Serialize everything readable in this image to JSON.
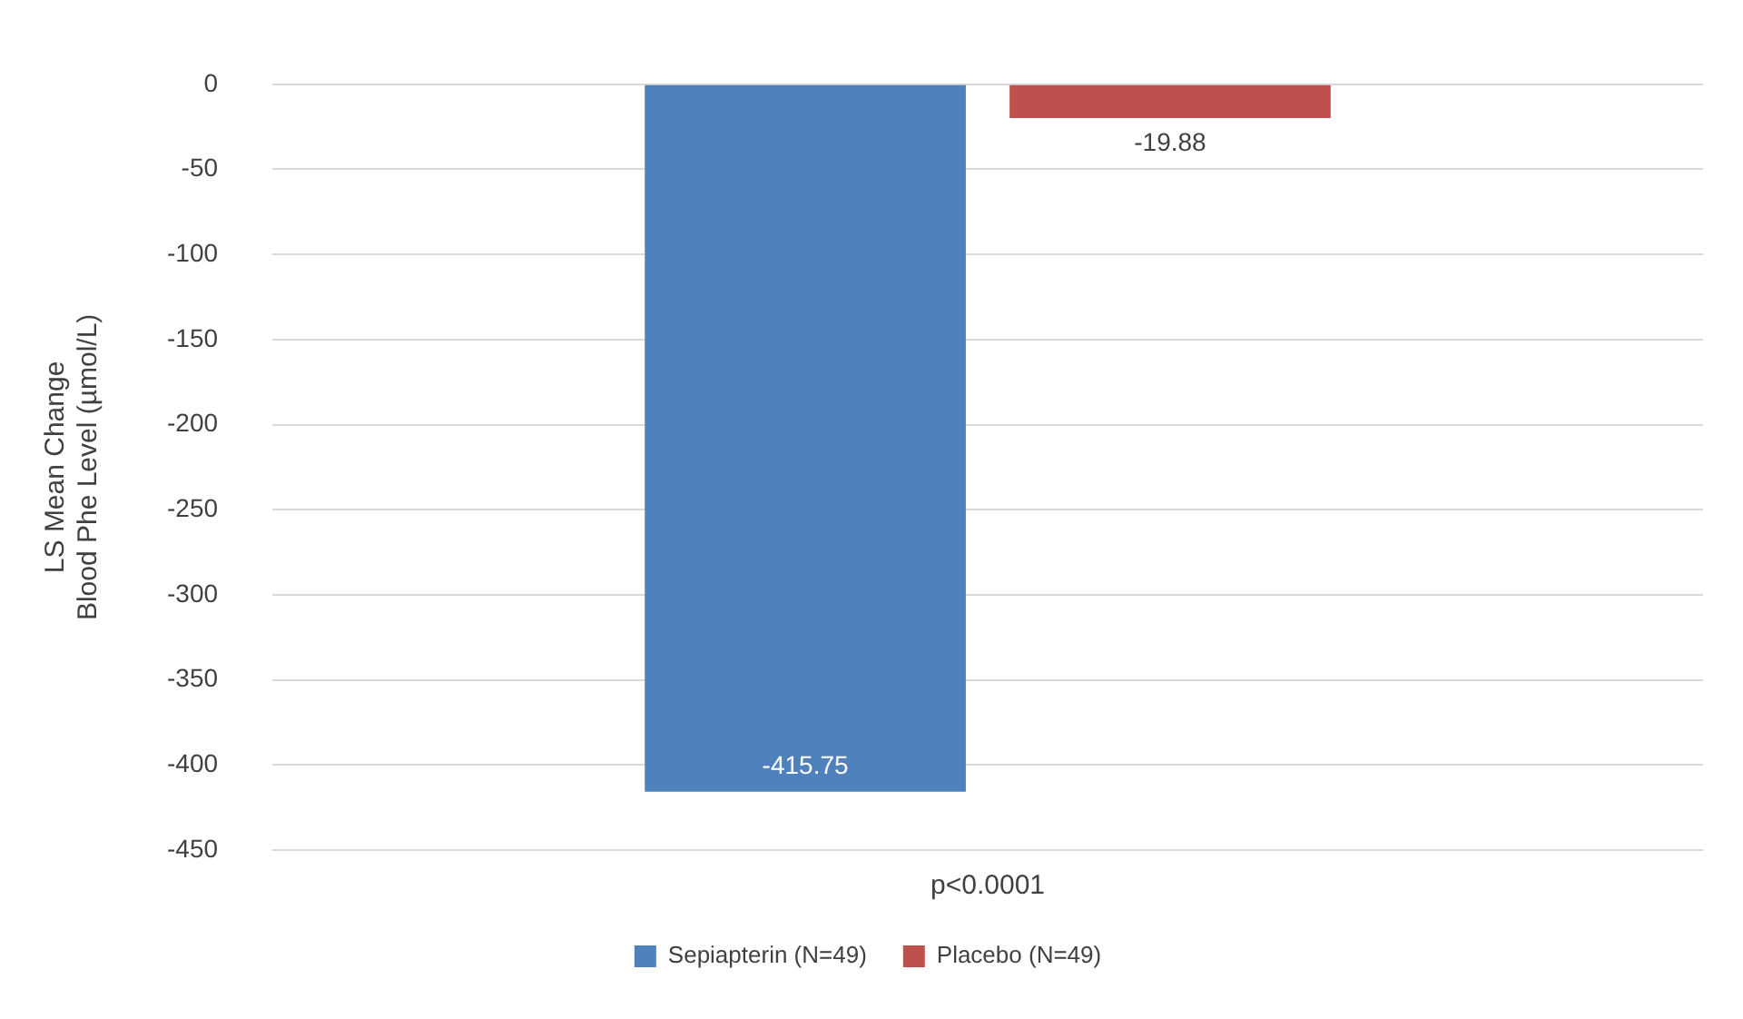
{
  "chart_data": {
    "type": "bar",
    "ylabel": "LS Mean Change\nBlood Phe Level (µmol/L)",
    "categories": [
      "p<0.0001"
    ],
    "series": [
      {
        "name": "Sepiapterin (N=49)",
        "color": "#4f81bd",
        "values": [
          -415.75
        ]
      },
      {
        "name": "Placebo (N=49)",
        "color": "#c0504d",
        "values": [
          -19.88
        ]
      }
    ],
    "ylim": [
      -450,
      0
    ],
    "yticks": [
      -450,
      -400,
      -350,
      -300,
      -250,
      -200,
      -150,
      -100,
      -50,
      0
    ],
    "grid": "y",
    "legend": "bottom",
    "data_labels": true
  }
}
